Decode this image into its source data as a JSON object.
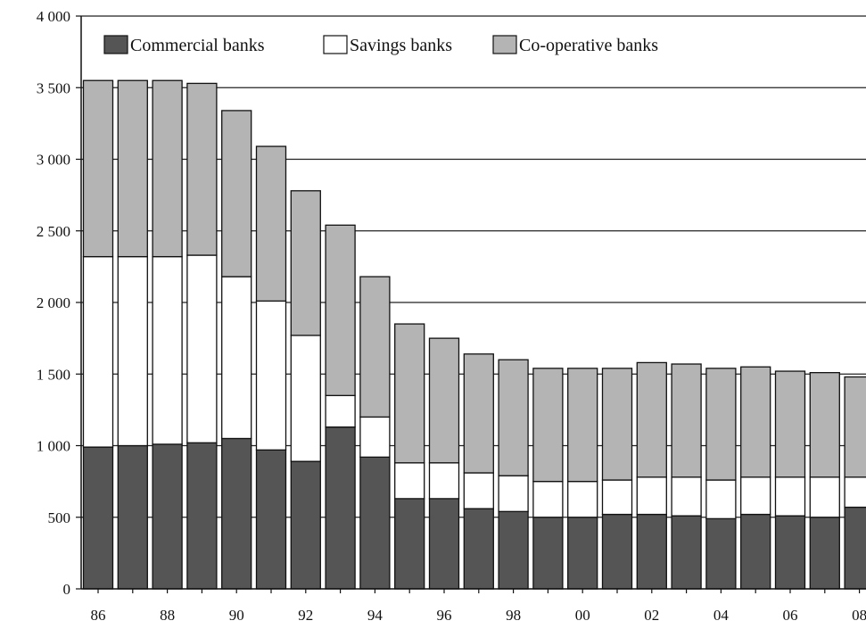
{
  "chart_data": {
    "type": "bar",
    "stacked": true,
    "categories": [
      "86",
      "87",
      "88",
      "89",
      "90",
      "91",
      "92",
      "93",
      "94",
      "95",
      "96",
      "97",
      "98",
      "99",
      "00",
      "01",
      "02",
      "03",
      "04",
      "05",
      "06",
      "07",
      "08"
    ],
    "x_tick_labels": [
      "86",
      "88",
      "90",
      "92",
      "94",
      "96",
      "98",
      "00",
      "02",
      "04",
      "06",
      "08"
    ],
    "y_tick_labels": [
      "0",
      "500",
      "1 000",
      "1 500",
      "2 000",
      "2 500",
      "3 000",
      "3 500",
      "4 000"
    ],
    "ylim": [
      0,
      4000
    ],
    "grid": "horizontal",
    "legend_position": "top-left",
    "series": [
      {
        "name": "Commercial banks",
        "color": "#555555",
        "values": [
          990,
          1000,
          1010,
          1020,
          1050,
          970,
          890,
          1130,
          920,
          630,
          630,
          560,
          540,
          500,
          500,
          520,
          520,
          510,
          490,
          520,
          510,
          500,
          570
        ]
      },
      {
        "name": "Savings banks",
        "color": "#ffffff",
        "values": [
          1330,
          1320,
          1310,
          1310,
          1130,
          1040,
          880,
          220,
          280,
          250,
          250,
          250,
          250,
          250,
          250,
          240,
          260,
          270,
          270,
          260,
          270,
          280,
          210
        ]
      },
      {
        "name": "Co-operative banks",
        "color": "#b4b4b4",
        "values": [
          1230,
          1230,
          1230,
          1200,
          1160,
          1080,
          1010,
          1190,
          980,
          970,
          870,
          830,
          810,
          790,
          790,
          780,
          800,
          790,
          780,
          770,
          740,
          730,
          700
        ]
      }
    ]
  }
}
